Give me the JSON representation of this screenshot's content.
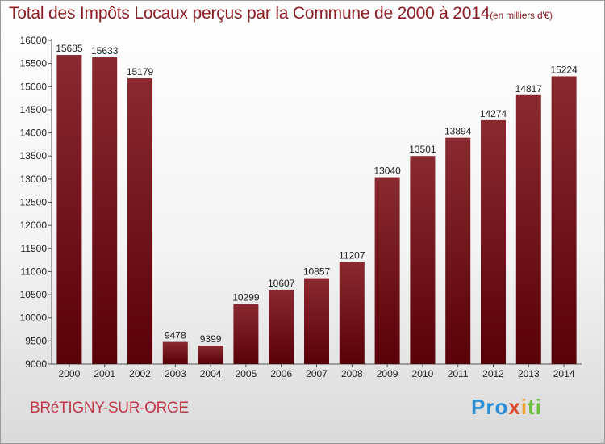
{
  "header": {
    "title": "Total des Impôts Locaux perçus par la Commune de 2000 à 2014",
    "unit": "(en milliers d'€)"
  },
  "footer": {
    "commune": "BRéTIGNY-SUR-ORGE",
    "logo": [
      "Pro",
      "x",
      "i",
      "ti"
    ]
  },
  "colors": {
    "bar_top": "#8a2a30",
    "bar_bottom": "#5a0008",
    "title": "#8a1e24",
    "commune": "#c0394a"
  },
  "chart_data": {
    "type": "bar",
    "title": "Total des Impôts Locaux perçus par la Commune de 2000 à 2014",
    "xlabel": "",
    "ylabel": "",
    "categories": [
      "2000",
      "2001",
      "2002",
      "2003",
      "2004",
      "2005",
      "2006",
      "2007",
      "2008",
      "2009",
      "2010",
      "2011",
      "2012",
      "2013",
      "2014"
    ],
    "values": [
      15685,
      15633,
      15179,
      9478,
      9399,
      10299,
      10607,
      10857,
      11207,
      13040,
      13501,
      13894,
      14274,
      14817,
      15224
    ],
    "ylim": [
      9000,
      16000
    ],
    "yticks": [
      "9000",
      "9500",
      "10000",
      "10500",
      "11000",
      "11500",
      "12000",
      "12500",
      "13000",
      "13500",
      "14000",
      "14500",
      "15000",
      "15500",
      "16000"
    ],
    "grid": false,
    "legend": "none"
  }
}
